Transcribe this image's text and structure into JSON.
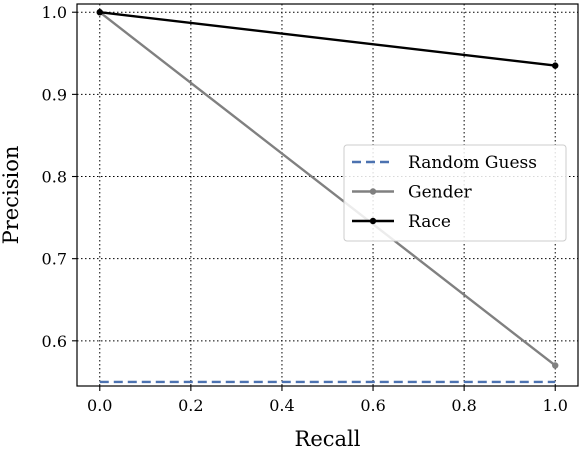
{
  "chart_data": {
    "type": "line",
    "xlabel": "Recall",
    "ylabel": "Precision",
    "xlim": [
      -0.05,
      1.05
    ],
    "ylim": [
      0.545,
      1.01
    ],
    "x_ticks": [
      0.0,
      0.2,
      0.4,
      0.6,
      0.8,
      1.0
    ],
    "x_tick_labels": [
      "0.0",
      "0.2",
      "0.4",
      "0.6",
      "0.8",
      "1.0"
    ],
    "y_ticks": [
      0.6,
      0.7,
      0.8,
      0.9,
      1.0
    ],
    "y_tick_labels": [
      "0.6",
      "0.7",
      "0.8",
      "0.9",
      "1.0"
    ],
    "grid": true,
    "grid_style": "dotted",
    "legend_position": "center-right",
    "series": [
      {
        "name": "Random Guess",
        "x": [
          0.0,
          1.0
        ],
        "y": [
          0.55,
          0.55
        ],
        "color": "#4c72b0",
        "style": "dashed",
        "markers": false
      },
      {
        "name": "Gender",
        "x": [
          0.0,
          1.0
        ],
        "y": [
          1.0,
          0.57
        ],
        "color": "#808080",
        "style": "solid",
        "markers": true
      },
      {
        "name": "Race",
        "x": [
          0.0,
          1.0
        ],
        "y": [
          1.0,
          0.935
        ],
        "color": "#000000",
        "style": "solid",
        "markers": true
      }
    ]
  }
}
